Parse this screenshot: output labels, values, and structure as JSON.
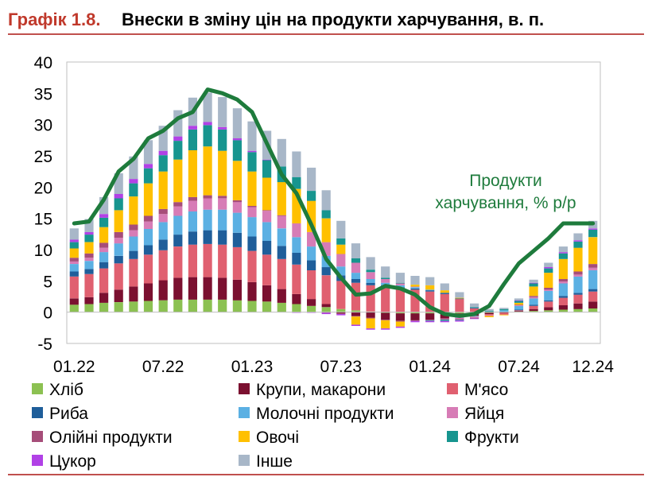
{
  "header": {
    "title_prefix": "Графік 1.8.",
    "title": "Внески в зміну цін на продукти харчування, в. п."
  },
  "chart_data": {
    "type": "bar",
    "stacked": true,
    "ylim": [
      -5,
      40
    ],
    "yticks": [
      "40",
      "35",
      "30",
      "25",
      "20",
      "15",
      "10",
      "5",
      "0",
      "-5"
    ],
    "ytick_values": [
      40,
      35,
      30,
      25,
      20,
      15,
      10,
      5,
      0,
      -5
    ],
    "xtick_labels": [
      "01.22",
      "07.22",
      "01.23",
      "07.23",
      "01.24",
      "07.24",
      "12.24"
    ],
    "xtick_indices": [
      0,
      6,
      12,
      18,
      24,
      30,
      35
    ],
    "legend_position": "bottom",
    "annotation": [
      "Продукти",
      "харчування, % р/р"
    ],
    "categories": [
      "01.22",
      "02.22",
      "03.22",
      "04.22",
      "05.22",
      "06.22",
      "07.22",
      "08.22",
      "09.22",
      "10.22",
      "11.22",
      "12.22",
      "01.23",
      "02.23",
      "03.23",
      "04.23",
      "05.23",
      "06.23",
      "07.23",
      "08.23",
      "09.23",
      "10.23",
      "11.23",
      "12.23",
      "01.24",
      "02.24",
      "03.24",
      "04.24",
      "05.24",
      "06.24",
      "07.24",
      "08.24",
      "09.24",
      "10.24",
      "11.24",
      "12.24"
    ],
    "series": [
      {
        "name": "Хліб",
        "color": "#8cc152",
        "values": [
          1.2,
          1.3,
          1.5,
          1.6,
          1.7,
          1.8,
          1.9,
          2.0,
          2.0,
          2.0,
          2.0,
          1.9,
          1.8,
          1.7,
          1.5,
          1.3,
          1.0,
          0.8,
          0.5,
          0.3,
          0.1,
          -0.1,
          -0.2,
          -0.2,
          -0.2,
          -0.2,
          -0.2,
          -0.2,
          -0.1,
          0.0,
          0.1,
          0.2,
          0.3,
          0.4,
          0.5,
          0.6
        ]
      },
      {
        "name": "Крупи, макарони",
        "color": "#7b1030",
        "values": [
          1.0,
          1.1,
          1.6,
          2.0,
          2.4,
          2.8,
          3.2,
          3.5,
          3.6,
          3.6,
          3.5,
          3.3,
          3.0,
          2.6,
          2.2,
          1.6,
          1.1,
          0.5,
          -0.2,
          -0.6,
          -0.9,
          -1.1,
          -1.2,
          -1.1,
          -1.0,
          -0.8,
          -0.6,
          -0.4,
          -0.2,
          -0.1,
          0.1,
          0.3,
          0.5,
          0.7,
          0.9,
          1.1
        ]
      },
      {
        "name": "М'ясо",
        "color": "#e06070",
        "values": [
          3.5,
          3.7,
          3.9,
          4.2,
          4.4,
          4.6,
          4.8,
          5.0,
          5.2,
          5.3,
          5.3,
          5.2,
          5.0,
          4.9,
          4.8,
          4.7,
          4.6,
          4.6,
          4.5,
          4.4,
          4.2,
          4.0,
          3.8,
          3.6,
          3.3,
          2.9,
          2.1,
          0.6,
          -0.2,
          -0.3,
          0.1,
          0.5,
          0.9,
          1.2,
          1.4,
          1.6
        ]
      },
      {
        "name": "Риба",
        "color": "#1f5e9a",
        "values": [
          0.8,
          0.8,
          1.0,
          1.2,
          1.3,
          1.5,
          1.7,
          1.9,
          2.1,
          2.2,
          2.3,
          2.3,
          2.3,
          2.2,
          2.1,
          1.9,
          1.6,
          1.3,
          0.9,
          0.6,
          0.4,
          0.3,
          0.2,
          0.2,
          0.2,
          0.2,
          0.1,
          0.1,
          0.0,
          0.1,
          0.1,
          0.2,
          0.2,
          0.3,
          0.3,
          0.4
        ]
      },
      {
        "name": "Молочні продукти",
        "color": "#5bb0e3",
        "values": [
          1.2,
          1.3,
          1.6,
          2.0,
          2.3,
          2.6,
          2.8,
          3.0,
          3.2,
          3.3,
          3.3,
          3.2,
          3.1,
          3.0,
          2.8,
          2.5,
          2.2,
          1.8,
          1.4,
          1.0,
          0.6,
          0.4,
          0.3,
          0.2,
          0.1,
          0.0,
          -0.1,
          -0.1,
          0.0,
          0.2,
          0.6,
          1.0,
          1.5,
          2.0,
          2.6,
          3.0
        ]
      },
      {
        "name": "Яйця",
        "color": "#d77cb6",
        "values": [
          0.4,
          0.5,
          0.7,
          0.9,
          1.0,
          1.2,
          1.3,
          1.5,
          1.7,
          1.8,
          1.8,
          1.7,
          1.6,
          1.8,
          2.0,
          2.2,
          2.3,
          2.2,
          2.0,
          1.6,
          1.1,
          0.6,
          0.3,
          0.1,
          0.0,
          -0.1,
          -0.2,
          -0.2,
          -0.1,
          0.0,
          0.1,
          0.2,
          0.2,
          0.3,
          0.3,
          0.4
        ]
      },
      {
        "name": "Олійні продукти",
        "color": "#a64d79",
        "values": [
          0.6,
          0.7,
          0.8,
          0.9,
          0.9,
          0.9,
          0.8,
          0.7,
          0.6,
          0.5,
          0.4,
          0.3,
          0.2,
          0.1,
          0.1,
          0.0,
          0.0,
          -0.1,
          -0.1,
          -0.1,
          -0.1,
          -0.1,
          -0.1,
          -0.1,
          -0.1,
          -0.1,
          -0.1,
          -0.1,
          0.0,
          0.0,
          0.1,
          0.2,
          0.3,
          0.4,
          0.5,
          0.6
        ]
      },
      {
        "name": "Овочі",
        "color": "#ffc000",
        "values": [
          1.5,
          1.8,
          2.5,
          3.5,
          4.5,
          5.2,
          6.0,
          6.8,
          7.5,
          7.8,
          7.2,
          6.3,
          5.5,
          5.2,
          5.3,
          5.5,
          5.0,
          3.8,
          1.5,
          -1.3,
          -1.6,
          -1.3,
          -0.8,
          0.3,
          0.7,
          0.4,
          0.1,
          0.0,
          -0.2,
          -0.1,
          0.3,
          1.5,
          2.4,
          3.2,
          3.8,
          4.3
        ]
      },
      {
        "name": "Фрукти",
        "color": "#17958f",
        "values": [
          1.0,
          1.2,
          1.5,
          1.9,
          2.1,
          2.4,
          2.6,
          3.0,
          3.3,
          3.4,
          3.4,
          3.3,
          3.1,
          2.8,
          2.5,
          1.9,
          1.6,
          1.3,
          1.0,
          0.7,
          0.4,
          0.2,
          0.1,
          0.0,
          -0.1,
          -0.2,
          -0.1,
          0.1,
          0.2,
          0.2,
          0.3,
          0.5,
          0.7,
          0.9,
          1.0,
          1.2
        ]
      },
      {
        "name": "Цукор",
        "color": "#b141e6",
        "values": [
          0.4,
          0.4,
          0.6,
          0.7,
          0.7,
          0.7,
          0.7,
          0.7,
          0.6,
          0.5,
          0.4,
          0.3,
          0.2,
          0.1,
          0.0,
          -0.1,
          -0.1,
          -0.2,
          -0.2,
          -0.2,
          -0.2,
          -0.2,
          -0.2,
          -0.2,
          -0.2,
          -0.2,
          -0.2,
          -0.1,
          0.0,
          0.0,
          0.1,
          0.1,
          0.2,
          0.2,
          0.2,
          0.2
        ]
      },
      {
        "name": "Інше",
        "color": "#a8b7c8",
        "values": [
          1.8,
          2.1,
          2.7,
          3.3,
          3.6,
          3.8,
          4.0,
          4.2,
          4.5,
          4.7,
          4.8,
          4.8,
          4.7,
          4.6,
          4.4,
          4.1,
          3.7,
          3.2,
          2.8,
          2.4,
          2.0,
          1.8,
          1.6,
          1.4,
          1.3,
          1.1,
          0.9,
          0.6,
          0.3,
          0.2,
          0.3,
          0.5,
          0.7,
          0.9,
          1.1,
          1.2
        ]
      }
    ],
    "line": {
      "name": "Продукти харчування, % р/р",
      "color": "#1e7b3c",
      "values": [
        14.2,
        14.5,
        18.0,
        22.5,
        24.5,
        27.8,
        29.0,
        31.0,
        32.0,
        35.6,
        35.0,
        34.0,
        32.0,
        27.0,
        22.0,
        19.0,
        14.0,
        8.5,
        5.5,
        2.8,
        3.0,
        4.2,
        3.8,
        2.8,
        0.8,
        -0.3,
        -0.6,
        -0.3,
        1.0,
        4.5,
        7.8,
        9.8,
        11.8,
        14.2,
        14.2,
        14.2
      ]
    }
  }
}
